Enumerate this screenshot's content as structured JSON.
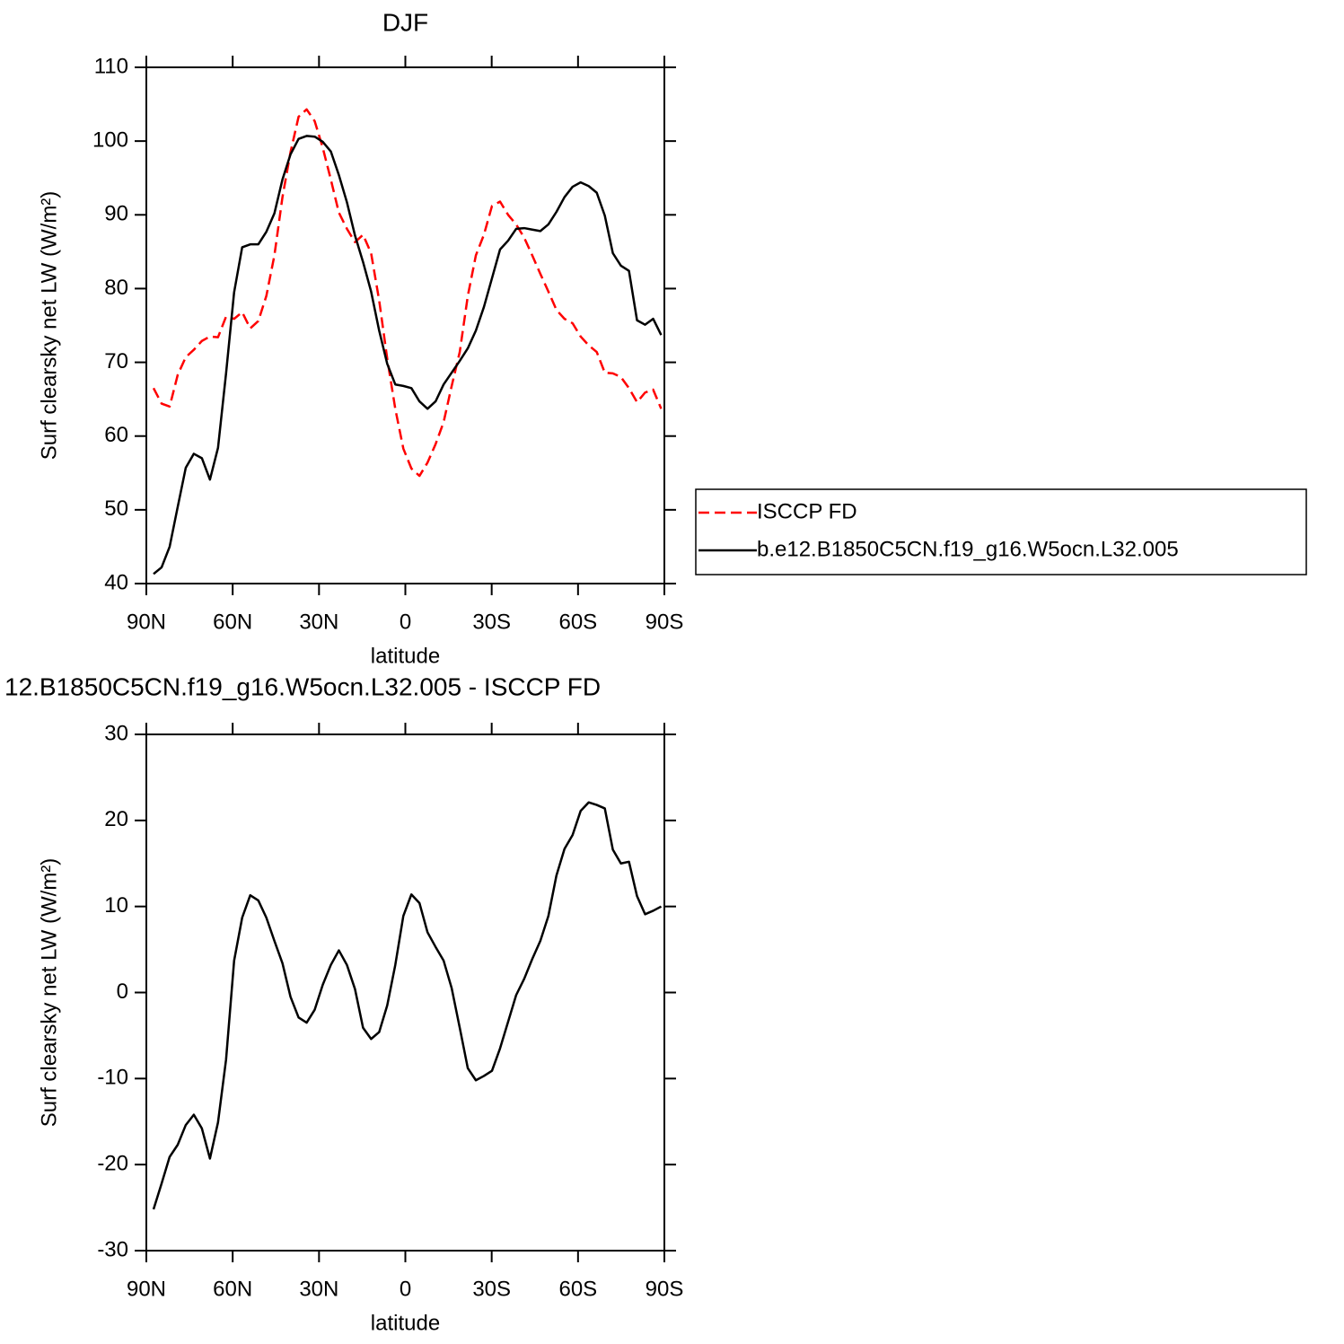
{
  "chart_data": [
    {
      "type": "line",
      "title": "DJF",
      "xlabel": "latitude",
      "ylabel": "Surf clearsky net LW (W/m²)",
      "x": [
        87.5,
        84.7,
        81.9,
        79.1,
        76.3,
        73.5,
        70.7,
        67.9,
        65.1,
        62.3,
        59.5,
        56.7,
        53.9,
        51.1,
        48.3,
        45.5,
        42.7,
        39.9,
        37.1,
        34.3,
        31.5,
        28.7,
        25.9,
        23.1,
        20.3,
        17.5,
        14.7,
        11.9,
        9.1,
        6.3,
        3.5,
        0.7,
        -2.1,
        -4.9,
        -7.7,
        -10.5,
        -13.3,
        -16.1,
        -18.9,
        -21.7,
        -24.5,
        -27.3,
        -30.1,
        -32.9,
        -35.7,
        -38.5,
        -41.3,
        -44.1,
        -46.9,
        -49.7,
        -52.5,
        -55.3,
        -58.1,
        -60.9,
        -63.7,
        -66.5,
        -69.3,
        -72.1,
        -74.9,
        -77.7,
        -80.5,
        -83.3,
        -86.1,
        -88.9
      ],
      "series": [
        {
          "name": "ISCCP FD",
          "color": "#ff0000",
          "dashed": true,
          "values": [
            66.5,
            64.4,
            64,
            68.3,
            70.7,
            71.7,
            72.9,
            73.5,
            73.4,
            76.2,
            75.9,
            76.8,
            74.6,
            75.6,
            79,
            84.5,
            92.4,
            98.5,
            103.3,
            104.3,
            102.7,
            99.1,
            94.8,
            90.3,
            88.1,
            86.3,
            87.3,
            84.8,
            78.4,
            70.5,
            63.7,
            58.3,
            55.6,
            54.6,
            56.4,
            58.9,
            61.9,
            66.8,
            71.4,
            79,
            84.5,
            87.3,
            91.2,
            91.8,
            90,
            88.7,
            86.9,
            84.5,
            82,
            79.6,
            77.1,
            75.9,
            75.3,
            73.5,
            72.3,
            71.4,
            68.6,
            68.5,
            68,
            66.5,
            64.6,
            65.9,
            66.3,
            63.7
          ]
        },
        {
          "name": "b.e12.B1850C5CN.f19_g16.W5ocn.L32.005",
          "color": "#000000",
          "dashed": false,
          "values": [
            41.3,
            42.2,
            45,
            50.4,
            55.7,
            57.6,
            57,
            54.1,
            58.4,
            68.5,
            79.5,
            85.6,
            86,
            86,
            87.7,
            90.2,
            94.8,
            98.2,
            100.3,
            100.7,
            100.6,
            99.9,
            98.6,
            95.4,
            91.7,
            87.2,
            83.6,
            79.6,
            74.3,
            69.8,
            67,
            66.8,
            66.5,
            64.7,
            63.7,
            64.7,
            67,
            68.6,
            70.2,
            71.9,
            74.3,
            77.5,
            81.4,
            85.3,
            86.5,
            88.1,
            88.2,
            88,
            87.8,
            88.7,
            90.4,
            92.4,
            93.8,
            94.4,
            93.9,
            93,
            89.9,
            84.8,
            83.1,
            82.4,
            75.7,
            75.1,
            75.9,
            73.7
          ]
        }
      ],
      "xlim": [
        90,
        -90
      ],
      "xticks": [
        {
          "value": 90,
          "label": "90N"
        },
        {
          "value": 60,
          "label": "60N"
        },
        {
          "value": 30,
          "label": "30N"
        },
        0,
        {
          "value": -30,
          "label": "30S"
        },
        {
          "value": -60,
          "label": "60S"
        },
        {
          "value": -90,
          "label": "90S"
        }
      ],
      "ylim": [
        40,
        110
      ],
      "yticks": [
        40,
        50,
        60,
        70,
        80,
        90,
        100,
        110
      ],
      "legend": "outside-right"
    },
    {
      "type": "line",
      "title": "12.B1850C5CN.f19_g16.W5ocn.L32.005 - ISCCP FD",
      "xlabel": "latitude",
      "ylabel": "Surf clearsky net LW (W/m²)",
      "x": [
        87.5,
        84.7,
        81.9,
        79.1,
        76.3,
        73.5,
        70.7,
        67.9,
        65.1,
        62.3,
        59.5,
        56.7,
        53.9,
        51.1,
        48.3,
        45.5,
        42.7,
        39.9,
        37.1,
        34.3,
        31.5,
        28.7,
        25.9,
        23.1,
        20.3,
        17.5,
        14.7,
        11.9,
        9.1,
        6.3,
        3.5,
        0.7,
        -2.1,
        -4.9,
        -7.7,
        -10.5,
        -13.3,
        -16.1,
        -18.9,
        -21.7,
        -24.5,
        -27.3,
        -30.1,
        -32.9,
        -35.7,
        -38.5,
        -41.3,
        -44.1,
        -46.9,
        -49.7,
        -52.5,
        -55.3,
        -58.1,
        -60.9,
        -63.7,
        -66.5,
        -69.3,
        -72.1,
        -74.9,
        -77.7,
        -80.5,
        -83.3,
        -86.1,
        -88.9
      ],
      "series": [
        {
          "color": "#000000",
          "dashed": false,
          "values": [
            -25.2,
            -22.2,
            -19.1,
            -17.7,
            -15.4,
            -14.2,
            -15.8,
            -19.3,
            -15.1,
            -7.8,
            3.7,
            8.7,
            11.3,
            10.7,
            8.7,
            6,
            3.4,
            -0.5,
            -2.9,
            -3.5,
            -2,
            0.9,
            3.2,
            4.9,
            3.2,
            0.4,
            -4.1,
            -5.4,
            -4.6,
            -1.5,
            3.2,
            8.9,
            11.4,
            10.4,
            7,
            5.3,
            3.7,
            0.5,
            -4.1,
            -8.8,
            -10.2,
            -9.7,
            -9.1,
            -6.5,
            -3.4,
            -0.3,
            1.6,
            3.9,
            6,
            8.9,
            13.6,
            16.7,
            18.3,
            21.1,
            22.1,
            21.8,
            21.4,
            16.6,
            15,
            15.2,
            11.2,
            9.1,
            9.5,
            10
          ]
        }
      ],
      "xlim": [
        90,
        -90
      ],
      "xticks": [
        {
          "value": 90,
          "label": "90N"
        },
        {
          "value": 60,
          "label": "60N"
        },
        {
          "value": 30,
          "label": "30N"
        },
        0,
        {
          "value": -30,
          "label": "30S"
        },
        {
          "value": -60,
          "label": "60S"
        },
        {
          "value": -90,
          "label": "90S"
        }
      ],
      "ylim": [
        -30,
        30
      ],
      "yticks": [
        -30,
        -20,
        -10,
        0,
        10,
        20,
        30
      ]
    }
  ]
}
